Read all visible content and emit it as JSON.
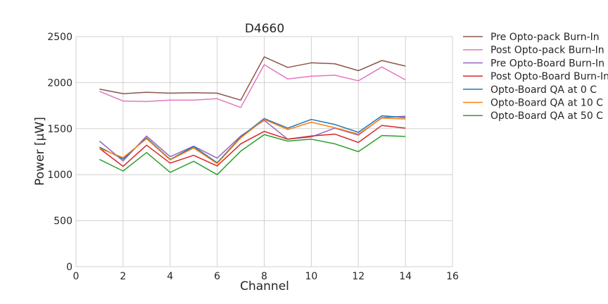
{
  "chart_data": {
    "type": "line",
    "title": "D4660",
    "xlabel": "Channel",
    "ylabel": "Power [μW]",
    "xlim": [
      0,
      16
    ],
    "ylim": [
      0,
      2500
    ],
    "xticks": [
      "0",
      "2",
      "4",
      "6",
      "8",
      "10",
      "12",
      "14",
      "16"
    ],
    "yticks": [
      "0",
      "500",
      "1000",
      "1500",
      "2000",
      "2500"
    ],
    "grid": true,
    "legend_position": "outside-right",
    "x": [
      1,
      2,
      3,
      4,
      5,
      6,
      7,
      8,
      9,
      10,
      11,
      12,
      13,
      14
    ],
    "series": [
      {
        "name": "Pre Opto-pack Burn-In",
        "color": "#8c564b",
        "values": [
          1930,
          1880,
          1895,
          1885,
          1890,
          1885,
          1810,
          2280,
          2165,
          2215,
          2205,
          2130,
          2240,
          2180
        ]
      },
      {
        "name": "Post Opto-pack Burn-In",
        "color": "#e377c2",
        "values": [
          1905,
          1800,
          1795,
          1810,
          1810,
          1825,
          1730,
          2195,
          2040,
          2070,
          2080,
          2020,
          2170,
          2030
        ]
      },
      {
        "name": "Pre Opto-Board Burn-In",
        "color": "#9467bd",
        "values": [
          1365,
          1150,
          1420,
          1195,
          1310,
          1180,
          1420,
          1590,
          1385,
          1410,
          1505,
          1430,
          1620,
          1635
        ]
      },
      {
        "name": "Post Opto-Board Burn-In",
        "color": "#d62728",
        "values": [
          1285,
          1090,
          1320,
          1125,
          1210,
          1095,
          1335,
          1470,
          1385,
          1420,
          1440,
          1350,
          1535,
          1505
        ]
      },
      {
        "name": "Opto-Board QA at 0 C",
        "color": "#1f77b4",
        "values": [
          1300,
          1170,
          1400,
          1165,
          1305,
          1130,
          1410,
          1610,
          1505,
          1600,
          1545,
          1460,
          1640,
          1620
        ]
      },
      {
        "name": "Opto-Board QA at 10 C",
        "color": "#ff7f0e",
        "values": [
          1285,
          1185,
          1390,
          1160,
          1290,
          1120,
          1400,
          1600,
          1490,
          1570,
          1510,
          1440,
          1615,
          1605
        ]
      },
      {
        "name": "Opto-Board QA at 50 C",
        "color": "#2ca02c",
        "values": [
          1165,
          1040,
          1240,
          1025,
          1145,
          1000,
          1255,
          1435,
          1365,
          1385,
          1335,
          1250,
          1425,
          1415
        ]
      }
    ]
  }
}
